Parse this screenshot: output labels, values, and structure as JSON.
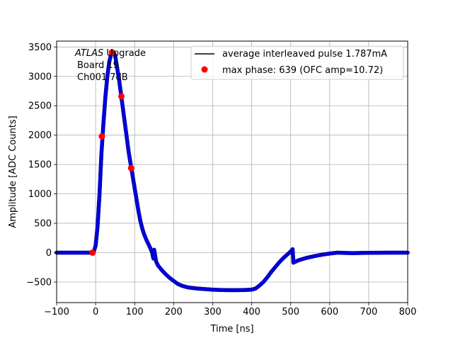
{
  "chart_data": {
    "type": "scatter",
    "xlabel": "Time [ns]",
    "ylabel": "Amplitude [ADC Counts]",
    "xlim": [
      -100,
      800
    ],
    "ylim": [
      -850,
      3600
    ],
    "grid": true,
    "x_ticks": [
      -100,
      0,
      100,
      200,
      300,
      400,
      500,
      600,
      700,
      800
    ],
    "y_ticks": [
      -500,
      0,
      500,
      1000,
      1500,
      2000,
      2500,
      3000,
      3500
    ],
    "x_tick_labels": [
      "−100",
      "0",
      "100",
      "200",
      "300",
      "400",
      "500",
      "600",
      "700",
      "800"
    ],
    "y_tick_labels": [
      "−500",
      "0",
      "500",
      "1000",
      "1500",
      "2000",
      "2500",
      "3000",
      "3500"
    ],
    "annotation": {
      "line1_italic": "ATLAS",
      "line1_rest": " Upgrade",
      "line2": "Board 19",
      "line3": "Ch001 7dB"
    },
    "legend": {
      "placement": "top-right",
      "entries": [
        {
          "label": "average interleaved pulse 1.787mA",
          "marker": "line",
          "color": "#000000"
        },
        {
          "label": "max phase: 639 (OFC amp=10.72)",
          "marker": "circle",
          "color": "#ff0000"
        }
      ]
    },
    "series": [
      {
        "marker_color": "#0000ff",
        "edge_color": "#000080",
        "points": [
          [
            -100,
            0
          ],
          [
            -50,
            0
          ],
          [
            -10,
            0
          ],
          [
            -5,
            10
          ],
          [
            0,
            120
          ],
          [
            5,
            450
          ],
          [
            10,
            1000
          ],
          [
            15,
            1700
          ],
          [
            20,
            2200
          ],
          [
            25,
            2650
          ],
          [
            30,
            3000
          ],
          [
            35,
            3250
          ],
          [
            40,
            3380
          ],
          [
            45,
            3420
          ],
          [
            50,
            3360
          ],
          [
            55,
            3150
          ],
          [
            60,
            2950
          ],
          [
            65,
            2700
          ],
          [
            70,
            2450
          ],
          [
            75,
            2200
          ],
          [
            80,
            1950
          ],
          [
            85,
            1700
          ],
          [
            90,
            1500
          ],
          [
            95,
            1300
          ],
          [
            100,
            1100
          ],
          [
            105,
            900
          ],
          [
            110,
            700
          ],
          [
            115,
            530
          ],
          [
            120,
            400
          ],
          [
            125,
            300
          ],
          [
            130,
            220
          ],
          [
            135,
            150
          ],
          [
            140,
            80
          ],
          [
            145,
            0
          ],
          [
            148,
            -100
          ],
          [
            150,
            50
          ],
          [
            155,
            -150
          ],
          [
            160,
            -220
          ],
          [
            170,
            -300
          ],
          [
            180,
            -370
          ],
          [
            190,
            -430
          ],
          [
            200,
            -480
          ],
          [
            210,
            -530
          ],
          [
            220,
            -560
          ],
          [
            230,
            -580
          ],
          [
            240,
            -595
          ],
          [
            260,
            -610
          ],
          [
            280,
            -620
          ],
          [
            300,
            -630
          ],
          [
            320,
            -635
          ],
          [
            340,
            -638
          ],
          [
            360,
            -638
          ],
          [
            380,
            -636
          ],
          [
            400,
            -630
          ],
          [
            410,
            -610
          ],
          [
            420,
            -560
          ],
          [
            430,
            -500
          ],
          [
            440,
            -420
          ],
          [
            450,
            -330
          ],
          [
            460,
            -250
          ],
          [
            470,
            -170
          ],
          [
            480,
            -100
          ],
          [
            490,
            -40
          ],
          [
            500,
            20
          ],
          [
            505,
            60
          ],
          [
            507,
            -170
          ],
          [
            510,
            -160
          ],
          [
            520,
            -130
          ],
          [
            540,
            -90
          ],
          [
            560,
            -60
          ],
          [
            580,
            -35
          ],
          [
            600,
            -15
          ],
          [
            620,
            0
          ],
          [
            640,
            -5
          ],
          [
            660,
            -8
          ],
          [
            680,
            -5
          ],
          [
            700,
            -3
          ],
          [
            750,
            0
          ],
          [
            800,
            0
          ]
        ]
      }
    ],
    "highlight_points": {
      "color": "#ff0000",
      "points": [
        [
          -8,
          0
        ],
        [
          16,
          1980
        ],
        [
          42,
          3410
        ],
        [
          66,
          2660
        ],
        [
          91,
          1440
        ]
      ]
    }
  }
}
